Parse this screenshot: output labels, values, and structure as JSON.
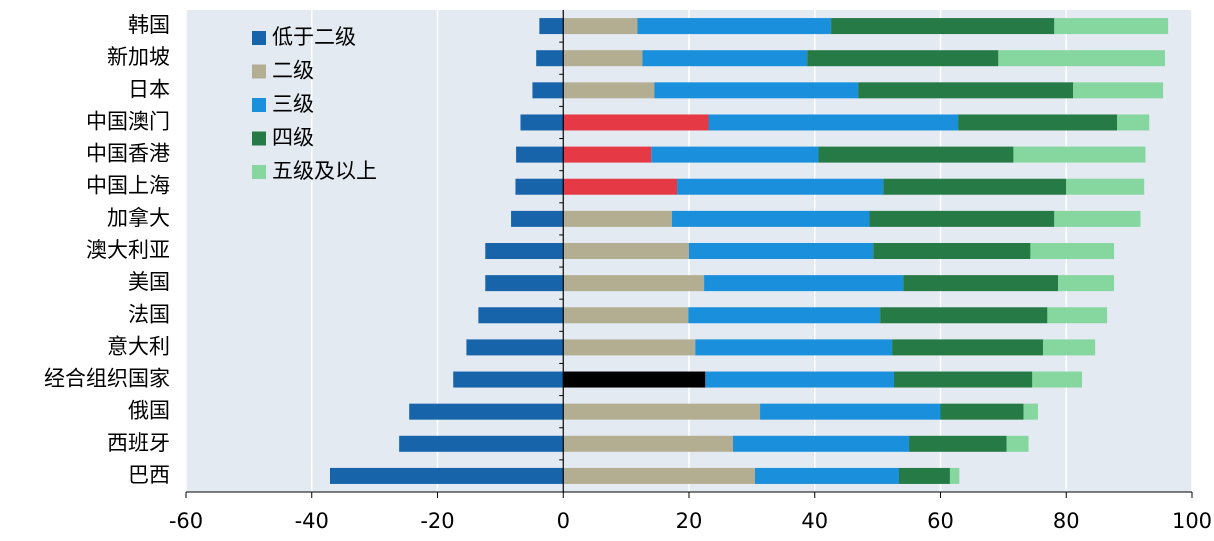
{
  "chart_data": {
    "type": "stacked_barh",
    "categories": [
      "韩国",
      "新加坡",
      "日本",
      "中国澳门",
      "中国香港",
      "中国上海",
      "加拿大",
      "澳大利亚",
      "美国",
      "法国",
      "意大利",
      "经合组织国家",
      "俄国",
      "西班牙",
      "巴西"
    ],
    "series": [
      {
        "name": "低于二级",
        "color": "#1764ab",
        "values": [
          -3.8,
          -4.3,
          -4.9,
          -6.8,
          -7.5,
          -7.6,
          -8.3,
          -12.4,
          -12.4,
          -13.5,
          -15.4,
          -17.5,
          -24.5,
          -26.1,
          -37.1
        ]
      },
      {
        "name": "二级",
        "color": "#b3ae92",
        "point_colors": [
          "#b3ae92",
          "#b3ae92",
          "#b3ae92",
          "#e63946",
          "#e63946",
          "#e63946",
          "#b3ae92",
          "#b3ae92",
          "#b3ae92",
          "#b3ae92",
          "#b3ae92",
          "#000000",
          "#b3ae92",
          "#b3ae92",
          "#b3ae92"
        ],
        "values": [
          11.8,
          12.6,
          14.5,
          23.1,
          14.0,
          18.1,
          17.3,
          20.0,
          22.4,
          19.9,
          21.0,
          22.6,
          31.3,
          27.0,
          30.5
        ]
      },
      {
        "name": "三级",
        "color": "#1a8fdb",
        "values": [
          30.8,
          26.2,
          32.4,
          39.7,
          26.6,
          32.8,
          31.4,
          29.3,
          31.7,
          30.5,
          31.3,
          30.0,
          28.7,
          28.0,
          22.9
        ]
      },
      {
        "name": "四级",
        "color": "#267a45",
        "values": [
          35.5,
          30.4,
          34.2,
          25.3,
          31.0,
          29.1,
          29.4,
          25.0,
          24.6,
          26.6,
          24.0,
          22.0,
          13.2,
          15.5,
          8.1
        ]
      },
      {
        "name": "五级及以上",
        "color": "#86d6a0",
        "values": [
          18.1,
          26.5,
          14.3,
          5.1,
          21.0,
          12.4,
          13.7,
          13.3,
          8.9,
          9.5,
          8.3,
          7.9,
          2.3,
          3.5,
          1.5
        ]
      }
    ],
    "xlim": [
      -60,
      100
    ],
    "xticks": [
      -60,
      -40,
      -20,
      0,
      20,
      40,
      60,
      80,
      100
    ],
    "grid": true,
    "legend": "upper left"
  }
}
